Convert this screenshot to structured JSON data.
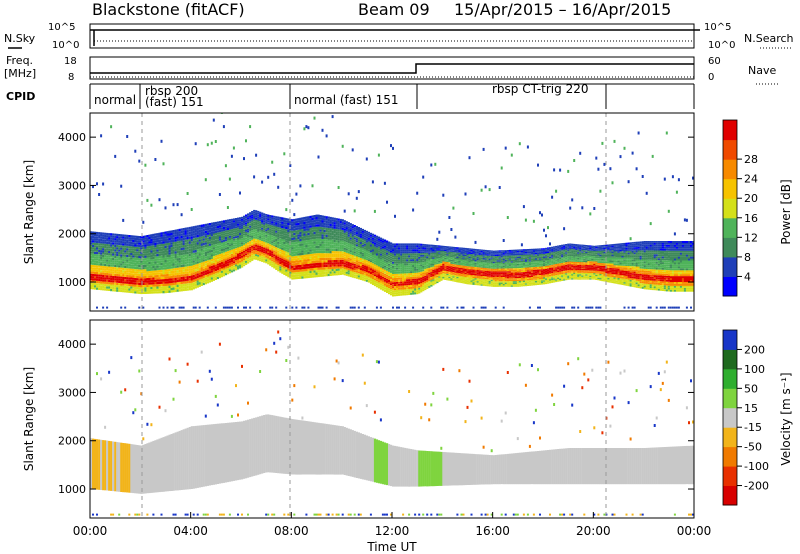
{
  "header": {
    "station": "Blackstone (fitACF)",
    "beam": "Beam 09",
    "date_range": "15/Apr/2015 – 16/Apr/2015"
  },
  "panels": {
    "nsky": {
      "label": "N.Sky",
      "right_label": "N.Search",
      "left_ticks": [
        "10^5",
        "10^0"
      ],
      "right_ticks": [
        "10^5",
        "10^0"
      ]
    },
    "freq": {
      "label_line1": "Freq.",
      "label_line2": "[MHz]",
      "right_label": "Nave",
      "left_ticks": [
        "18",
        "8"
      ],
      "right_ticks": [
        "60",
        "0"
      ]
    },
    "cpid": {
      "label": "CPID",
      "segments": [
        {
          "line1": "normal",
          "line2": ""
        },
        {
          "line1": "rbsp 200",
          "line2": "(fast) 151"
        },
        {
          "line1": "normal (fast) 151",
          "line2": ""
        },
        {
          "line1": "rbsp CT-trig 220",
          "line2": ""
        }
      ]
    }
  },
  "colors": {
    "scatter_background": "#ffffff",
    "ground_scatter": "#bebebe",
    "axis": "#000000",
    "dashed_marker": "#9a9a9a"
  },
  "chart_data": [
    {
      "type": "heatmap",
      "title": "Power",
      "ylabel": "Slant Range [km]",
      "xlabel": "",
      "ylim": [
        400,
        4500
      ],
      "y_ticks": [
        "1000",
        "2000",
        "3000",
        "4000"
      ],
      "colorbar_label": "Power [dB]",
      "colorbar_ticks": [
        "4",
        "8",
        "12",
        "16",
        "20",
        "24",
        "28"
      ],
      "colorbar_colors": [
        "#0000ff",
        "#1f3fb8",
        "#3f8a5a",
        "#4fb35a",
        "#d4e01a",
        "#f6c300",
        "#f78a00",
        "#f04a00",
        "#e00000"
      ],
      "ridge_km": [
        [
          0,
          1100
        ],
        [
          1,
          1050
        ],
        [
          2,
          1000
        ],
        [
          3,
          1020
        ],
        [
          4,
          1080
        ],
        [
          5,
          1300
        ],
        [
          6,
          1550
        ],
        [
          6.5,
          1720
        ],
        [
          7,
          1630
        ],
        [
          7.5,
          1450
        ],
        [
          8,
          1300
        ],
        [
          9,
          1350
        ],
        [
          10,
          1400
        ],
        [
          11,
          1250
        ],
        [
          12,
          950
        ],
        [
          13,
          1000
        ],
        [
          14,
          1300
        ],
        [
          15,
          1200
        ],
        [
          16,
          1150
        ],
        [
          17,
          1150
        ],
        [
          18,
          1200
        ],
        [
          19,
          1300
        ],
        [
          20,
          1300
        ],
        [
          21,
          1200
        ],
        [
          22,
          1100
        ],
        [
          23,
          1050
        ],
        [
          24,
          1050
        ]
      ],
      "band_km": [
        [
          0,
          2050
        ],
        [
          1,
          2000
        ],
        [
          2,
          1950
        ],
        [
          3,
          2050
        ],
        [
          4,
          2150
        ],
        [
          5,
          2250
        ],
        [
          6,
          2350
        ],
        [
          6.5,
          2500
        ],
        [
          7,
          2400
        ],
        [
          8,
          2300
        ],
        [
          9,
          2400
        ],
        [
          10,
          2300
        ],
        [
          11,
          2050
        ],
        [
          12,
          1800
        ],
        [
          13,
          1800
        ],
        [
          14,
          1750
        ],
        [
          16,
          1650
        ],
        [
          18,
          1700
        ],
        [
          19,
          1800
        ],
        [
          20,
          1750
        ],
        [
          22,
          1850
        ],
        [
          24,
          1850
        ]
      ]
    },
    {
      "type": "heatmap",
      "title": "Velocity",
      "ylabel": "Slant Range [km]",
      "xlabel": "Time UT",
      "ylim": [
        400,
        4500
      ],
      "y_ticks": [
        "1000",
        "2000",
        "3000",
        "4000"
      ],
      "x_ticks": [
        "00:00",
        "04:00",
        "08:00",
        "12:00",
        "16:00",
        "20:00",
        "00:00"
      ],
      "colorbar_label": "Velocity [m s⁻¹]",
      "colorbar_ticks": [
        "200",
        "100",
        "50",
        "15",
        "-15",
        "-50",
        "-100",
        "-200"
      ],
      "colorbar_colors": [
        "#1836c8",
        "#1f6a1f",
        "#2fae2f",
        "#7fd43f",
        "#c8c8c8",
        "#f2b41a",
        "#f07a00",
        "#e83000",
        "#d80000"
      ],
      "gs_lower_km": [
        [
          0,
          1000
        ],
        [
          2,
          900
        ],
        [
          4,
          1000
        ],
        [
          6,
          1200
        ],
        [
          7,
          1350
        ],
        [
          8,
          1300
        ],
        [
          10,
          1300
        ],
        [
          12,
          1050
        ],
        [
          13,
          1050
        ],
        [
          16,
          1100
        ],
        [
          20,
          1100
        ],
        [
          24,
          1100
        ]
      ],
      "gs_upper_km": [
        [
          0,
          2050
        ],
        [
          2,
          1900
        ],
        [
          4,
          2300
        ],
        [
          6,
          2400
        ],
        [
          7,
          2550
        ],
        [
          8,
          2450
        ],
        [
          10,
          2300
        ],
        [
          12,
          1900
        ],
        [
          13,
          1800
        ],
        [
          16,
          1700
        ],
        [
          19,
          1850
        ],
        [
          22,
          1850
        ],
        [
          24,
          1900
        ]
      ]
    }
  ]
}
